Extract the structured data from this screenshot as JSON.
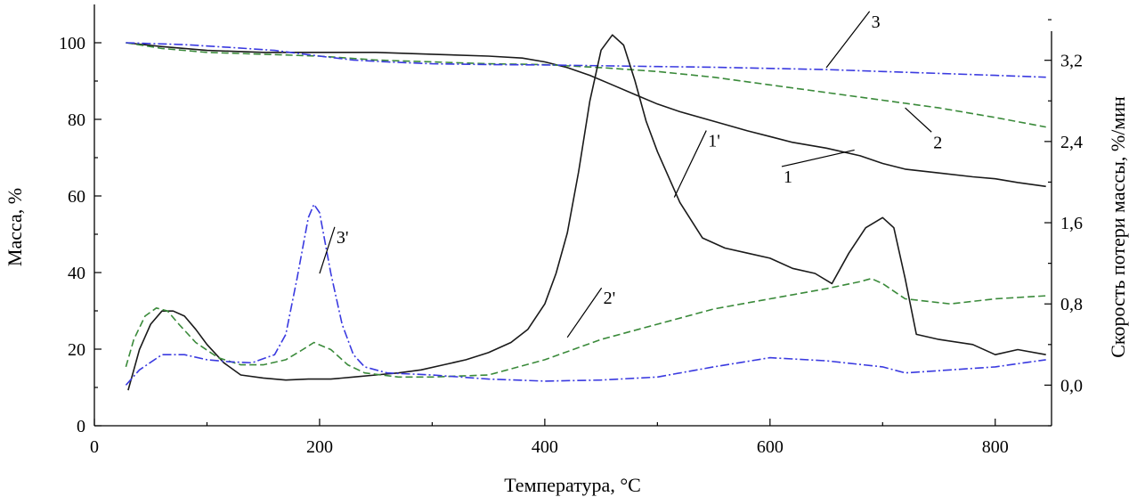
{
  "chart_data": {
    "type": "line",
    "title": "",
    "xlabel": "Температура, °С",
    "ylabel_left": "Масса, %",
    "ylabel_right": "Скорость потери массы, %/мин",
    "xlim": [
      0,
      850
    ],
    "ylim_left": [
      0,
      110
    ],
    "ylim_right": [
      -0.4,
      3.75
    ],
    "x_ticks": [
      0,
      200,
      400,
      600,
      800
    ],
    "x_tick_labels": [
      "0",
      "200",
      "400",
      "600",
      "800"
    ],
    "y_left_ticks": [
      0,
      20,
      40,
      60,
      80,
      100
    ],
    "y_left_tick_labels": [
      "0",
      "20",
      "40",
      "60",
      "80",
      "100"
    ],
    "y_right_ticks": [
      0.0,
      0.8,
      1.6,
      2.4,
      3.2
    ],
    "y_right_tick_labels": [
      "0,0",
      "0,8",
      "1,6",
      "2,4",
      "3,2"
    ],
    "grid": false,
    "legend": "none",
    "series": [
      {
        "name": "1",
        "axis": "left",
        "color": "#1a1a1a",
        "dash": "solid",
        "x": [
          28,
          60,
          100,
          150,
          200,
          250,
          300,
          350,
          380,
          400,
          420,
          440,
          460,
          480,
          500,
          520,
          550,
          580,
          600,
          620,
          650,
          680,
          700,
          720,
          750,
          780,
          800,
          820,
          845
        ],
        "y": [
          100,
          99,
          98,
          97.5,
          97.5,
          97.5,
          97,
          96.5,
          96,
          95,
          93.5,
          91.5,
          89,
          86.5,
          84,
          82,
          79.5,
          77,
          75.5,
          74,
          72.5,
          70.5,
          68.5,
          67,
          66,
          65,
          64.5,
          63.5,
          62.5
        ]
      },
      {
        "name": "2",
        "axis": "left",
        "color": "#3a8a3a",
        "dash": "8,4",
        "x": [
          28,
          60,
          100,
          150,
          200,
          250,
          300,
          350,
          400,
          450,
          500,
          550,
          600,
          650,
          700,
          750,
          800,
          845
        ],
        "y": [
          100,
          98.5,
          97.5,
          97,
          96.5,
          95.5,
          95,
          94.5,
          94.3,
          93.5,
          92.5,
          91,
          89,
          87,
          85,
          83,
          80.5,
          78
        ]
      },
      {
        "name": "3",
        "axis": "left",
        "color": "#3a3ae0",
        "dash": "10,3,2,3",
        "x": [
          28,
          80,
          120,
          160,
          200,
          230,
          260,
          300,
          350,
          400,
          450,
          500,
          550,
          600,
          650,
          700,
          750,
          800,
          845
        ],
        "y": [
          100,
          99.5,
          98.8,
          98,
          96.5,
          95.5,
          95,
          94.5,
          94.3,
          94.2,
          94,
          93.8,
          93.6,
          93.3,
          93,
          92.5,
          92,
          91.5,
          91
        ]
      },
      {
        "name": "1'",
        "axis": "right",
        "color": "#1a1a1a",
        "dash": "solid",
        "x": [
          30,
          35,
          40,
          50,
          60,
          70,
          80,
          90,
          100,
          115,
          130,
          150,
          170,
          190,
          210,
          230,
          250,
          270,
          290,
          310,
          330,
          350,
          370,
          385,
          400,
          410,
          420,
          430,
          440,
          450,
          460,
          470,
          480,
          490,
          500,
          520,
          540,
          560,
          580,
          600,
          620,
          640,
          655,
          670,
          685,
          700,
          710,
          720,
          730,
          750,
          780,
          800,
          820,
          845
        ],
        "y": [
          -0.05,
          0.15,
          0.35,
          0.6,
          0.73,
          0.73,
          0.68,
          0.55,
          0.4,
          0.22,
          0.1,
          0.07,
          0.05,
          0.06,
          0.06,
          0.08,
          0.1,
          0.12,
          0.15,
          0.2,
          0.25,
          0.32,
          0.42,
          0.55,
          0.8,
          1.1,
          1.5,
          2.1,
          2.8,
          3.3,
          3.45,
          3.35,
          3.0,
          2.6,
          2.3,
          1.8,
          1.45,
          1.35,
          1.3,
          1.25,
          1.15,
          1.1,
          1.0,
          1.3,
          1.55,
          1.65,
          1.55,
          1.05,
          0.5,
          0.45,
          0.4,
          0.3,
          0.35,
          0.3
        ]
      },
      {
        "name": "2'",
        "axis": "right",
        "color": "#3a8a3a",
        "dash": "8,4",
        "x": [
          28,
          35,
          45,
          55,
          65,
          75,
          90,
          110,
          130,
          150,
          170,
          185,
          195,
          210,
          225,
          240,
          270,
          300,
          350,
          400,
          450,
          500,
          550,
          600,
          650,
          680,
          690,
          700,
          720,
          760,
          800,
          845
        ],
        "y": [
          0.18,
          0.45,
          0.68,
          0.76,
          0.73,
          0.6,
          0.42,
          0.27,
          0.2,
          0.2,
          0.25,
          0.35,
          0.42,
          0.35,
          0.2,
          0.12,
          0.08,
          0.08,
          0.1,
          0.25,
          0.45,
          0.6,
          0.75,
          0.85,
          0.95,
          1.02,
          1.05,
          1.0,
          0.85,
          0.8,
          0.85,
          0.88
        ]
      },
      {
        "name": "3'",
        "axis": "right",
        "color": "#3a3ae0",
        "dash": "10,3,2,3",
        "x": [
          28,
          40,
          60,
          80,
          100,
          120,
          140,
          160,
          170,
          180,
          190,
          195,
          200,
          210,
          220,
          230,
          240,
          260,
          300,
          350,
          400,
          450,
          500,
          550,
          600,
          650,
          700,
          720,
          760,
          800,
          845
        ],
        "y": [
          0.0,
          0.15,
          0.3,
          0.3,
          0.25,
          0.23,
          0.22,
          0.3,
          0.5,
          1.05,
          1.65,
          1.78,
          1.7,
          1.1,
          0.6,
          0.3,
          0.18,
          0.12,
          0.1,
          0.06,
          0.04,
          0.05,
          0.08,
          0.18,
          0.27,
          0.24,
          0.18,
          0.12,
          0.15,
          0.18,
          0.25
        ]
      }
    ],
    "annotations": [
      {
        "text": "1",
        "x": 612,
        "y": 63.5,
        "axis": "left",
        "line_to": [
          675,
          72
        ],
        "anchor": "left"
      },
      {
        "text": "2",
        "x": 745,
        "y": 72.5,
        "axis": "left",
        "line_to": [
          720,
          83
        ],
        "anchor": "left"
      },
      {
        "text": "3",
        "x": 690,
        "y": 104,
        "axis": "left",
        "line_to": [
          650,
          93.5
        ],
        "anchor": "left"
      },
      {
        "text": "1'",
        "x": 545,
        "y": 2.35,
        "axis": "right",
        "line_to": [
          515,
          1.85
        ],
        "anchor": "left"
      },
      {
        "text": "2'",
        "x": 452,
        "y": 0.8,
        "axis": "right",
        "line_to": [
          420,
          0.47
        ],
        "anchor": "left"
      },
      {
        "text": "3'",
        "x": 215,
        "y": 1.4,
        "axis": "right",
        "line_to": [
          200,
          1.1
        ],
        "anchor": "left"
      }
    ]
  }
}
